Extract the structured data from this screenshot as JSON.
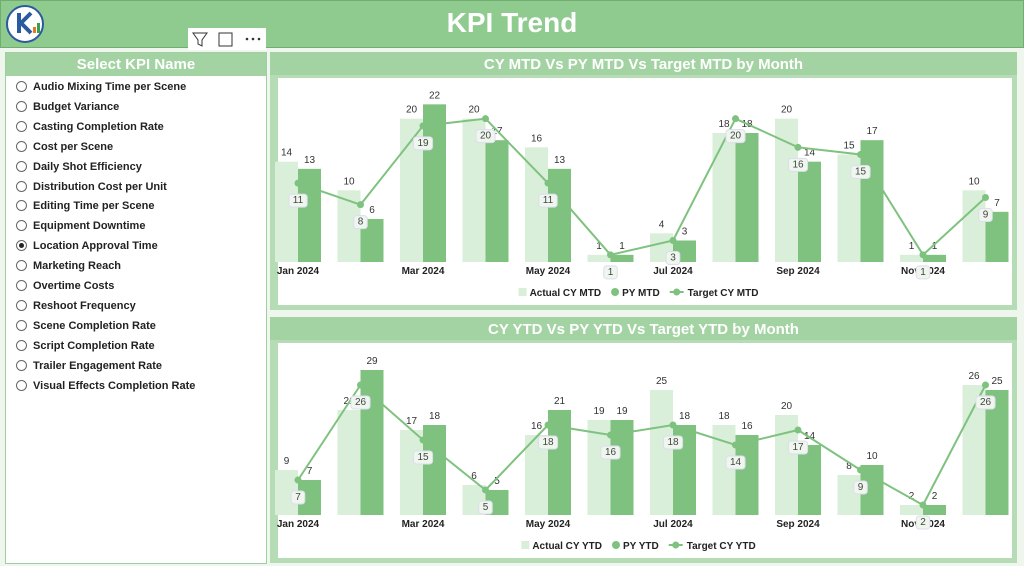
{
  "header": {
    "title": "KPI Trend"
  },
  "slicer": {
    "title": "Select KPI Name",
    "selected": 8,
    "items": [
      "Audio Mixing Time per Scene",
      "Budget Variance",
      "Casting Completion Rate",
      "Cost per Scene",
      "Daily Shot Efficiency",
      "Distribution Cost per Unit",
      "Editing Time per Scene",
      "Equipment Downtime",
      "Location Approval Time",
      "Marketing Reach",
      "Overtime Costs",
      "Reshoot Frequency",
      "Scene Completion Rate",
      "Script Completion Rate",
      "Trailer Engagement Rate",
      "Visual Effects Completion Rate"
    ]
  },
  "chart_data": [
    {
      "type": "bar",
      "title": "CY MTD Vs PY MTD Vs Target MTD by Month",
      "categories": [
        "Jan 2024",
        null,
        "Mar 2024",
        null,
        "May 2024",
        null,
        "Jul 2024",
        null,
        "Sep 2024",
        null,
        "Nov 2024",
        null
      ],
      "ylim": [
        0,
        24
      ],
      "series": [
        {
          "name": "Actual CY MTD",
          "color": "#d9efd9",
          "values": [
            14,
            10,
            20,
            20,
            16,
            1,
            4,
            18,
            20,
            15,
            1,
            10
          ]
        },
        {
          "name": "PY MTD",
          "color": "#7fc27f",
          "values": [
            13,
            6,
            22,
            17,
            13,
            1,
            3,
            18,
            14,
            17,
            1,
            7
          ]
        },
        {
          "name": "Target CY MTD",
          "type": "line",
          "color": "#7fc27f",
          "values": [
            11,
            8,
            19,
            20,
            11,
            1,
            3,
            20,
            16,
            15,
            1,
            9
          ]
        }
      ]
    },
    {
      "type": "bar",
      "title": "CY YTD Vs PY YTD Vs Target YTD by Month",
      "categories": [
        "Jan 2024",
        null,
        "Mar 2024",
        null,
        "May 2024",
        null,
        "Jul 2024",
        null,
        "Sep 2024",
        null,
        "Nov 2024",
        null
      ],
      "ylim": [
        0,
        32
      ],
      "series": [
        {
          "name": "Actual CY YTD",
          "color": "#d9efd9",
          "values": [
            9,
            21,
            17,
            6,
            16,
            19,
            25,
            18,
            20,
            8,
            2,
            26
          ]
        },
        {
          "name": "PY YTD",
          "color": "#7fc27f",
          "values": [
            7,
            29,
            18,
            5,
            21,
            19,
            18,
            16,
            14,
            10,
            2,
            25
          ]
        },
        {
          "name": "Target CY YTD",
          "type": "line",
          "color": "#7fc27f",
          "values": [
            7,
            26,
            15,
            5,
            18,
            16,
            18,
            14,
            17,
            9,
            2,
            26
          ]
        }
      ]
    }
  ]
}
